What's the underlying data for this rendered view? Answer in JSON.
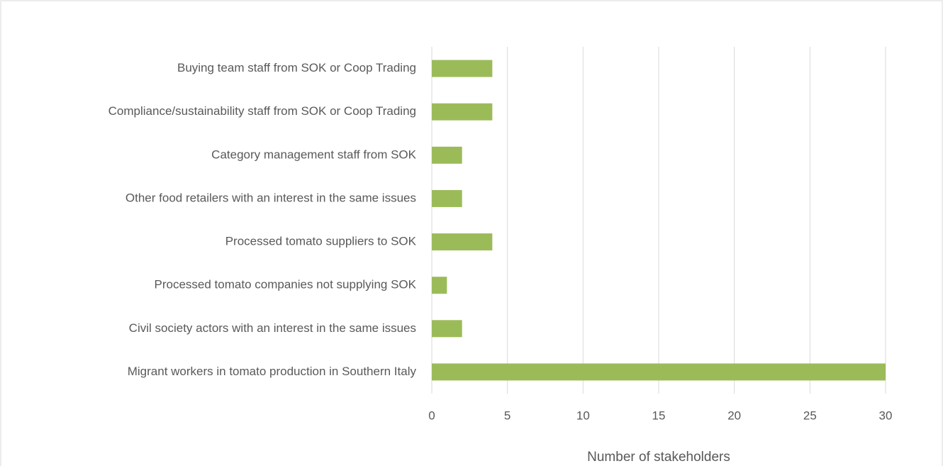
{
  "chart_data": {
    "type": "bar",
    "orientation": "horizontal",
    "x_label": "Number of stakeholders",
    "categories": [
      "Buying team staff from SOK or Coop Trading",
      "Compliance/sustainability staff from SOK or Coop Trading",
      "Category management staff from SOK",
      "Other food retailers with an interest in the same issues",
      "Processed tomato suppliers to SOK",
      "Processed tomato companies not supplying SOK",
      "Civil society actors with an interest in the same issues",
      "Migrant workers in tomato production in Southern Italy"
    ],
    "values": [
      4,
      4,
      2,
      2,
      4,
      1,
      2,
      30
    ],
    "color": "#9bbb59",
    "xlim": [
      0,
      30
    ],
    "xticks": [
      0,
      5,
      10,
      15,
      20,
      25,
      30
    ],
    "grid": true
  }
}
